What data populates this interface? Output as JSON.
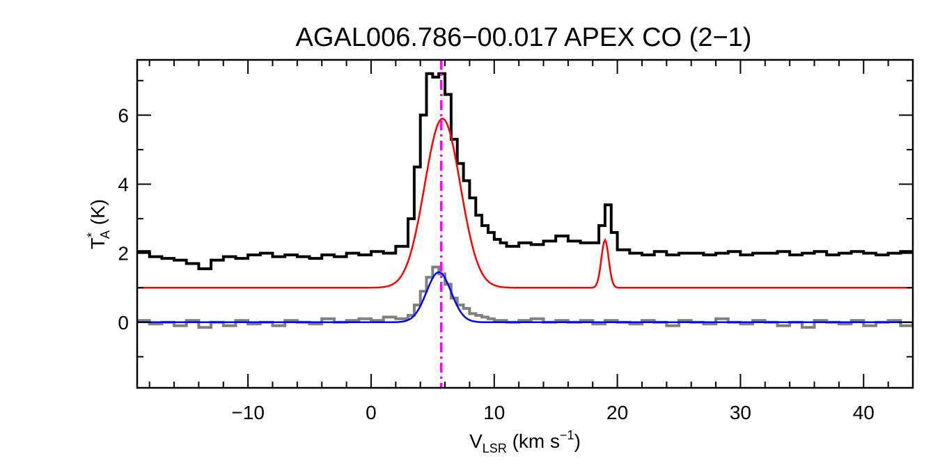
{
  "chart_data": {
    "type": "line",
    "title": "AGAL006.786−00.017  APEX CO (2−1)",
    "xlabel": {
      "main": "V",
      "sub": "LSR",
      "units_prefix": " (km s",
      "units_sup": "−1",
      "units_suffix": ")"
    },
    "ylabel": {
      "main": "T",
      "sup": "*",
      "sub": "A",
      "units": " (K)"
    },
    "xlim": [
      -19,
      44
    ],
    "ylim": [
      -1.9,
      7.6
    ],
    "xticks": [
      -10,
      0,
      10,
      20,
      30,
      40
    ],
    "xtick_labels": [
      "−10",
      "0",
      "10",
      "20",
      "30",
      "40"
    ],
    "yticks": [
      0,
      2,
      4,
      6
    ],
    "ytick_labels": [
      "0",
      "2",
      "4",
      "6"
    ],
    "x_minor_step": 2,
    "y_minor_step": 1,
    "grid": false,
    "vline": {
      "x": 5.7,
      "color": "#ff00ff",
      "style": "dash-dot"
    },
    "series": [
      {
        "role": "spectrum-offset",
        "style": "step",
        "color": "#000000",
        "offset": 1.0,
        "x": [
          -19,
          -18,
          -17,
          -16,
          -15,
          -14,
          -13,
          -12,
          -11,
          -10,
          -9,
          -8,
          -7,
          -6,
          -5,
          -4,
          -3,
          -2,
          -1,
          0,
          1,
          2,
          3,
          3.5,
          4,
          4.5,
          5,
          5.5,
          6,
          6.5,
          7,
          7.5,
          8,
          8.5,
          9,
          9.5,
          10,
          10.5,
          11,
          12,
          13,
          14,
          15,
          16,
          17,
          18,
          18.5,
          19,
          19.5,
          20,
          21,
          22,
          23,
          24,
          25,
          26,
          27,
          28,
          29,
          30,
          31,
          32,
          33,
          34,
          35,
          36,
          37,
          38,
          39,
          40,
          41,
          42,
          43,
          44
        ],
        "y": [
          1.05,
          0.9,
          0.85,
          0.8,
          0.7,
          0.55,
          0.8,
          0.9,
          0.85,
          0.95,
          1.0,
          0.9,
          0.95,
          0.9,
          0.85,
          0.95,
          0.9,
          1.0,
          0.95,
          1.05,
          1.0,
          1.2,
          2.0,
          3.5,
          5.0,
          6.2,
          6.1,
          6.2,
          5.6,
          4.3,
          3.6,
          3.1,
          2.6,
          2.1,
          1.8,
          1.6,
          1.4,
          1.3,
          1.2,
          1.3,
          1.25,
          1.35,
          1.5,
          1.35,
          1.3,
          1.3,
          1.8,
          2.4,
          1.6,
          1.1,
          1.0,
          0.95,
          1.05,
          0.95,
          1.0,
          1.0,
          0.95,
          1.0,
          1.05,
          0.95,
          1.0,
          1.0,
          1.05,
          0.95,
          1.0,
          1.05,
          0.95,
          1.0,
          1.05,
          1.0,
          0.95,
          1.0,
          1.05,
          1.0
        ]
      },
      {
        "role": "fit-offset",
        "style": "smooth",
        "color": "#ff0000",
        "offset": 1.0,
        "components": [
          {
            "amp": 4.9,
            "center": 5.8,
            "sigma": 1.45
          },
          {
            "amp": 1.38,
            "center": 19.0,
            "sigma": 0.3
          }
        ]
      },
      {
        "role": "spectrum",
        "style": "step",
        "color": "#808080",
        "offset": 0.0,
        "x": [
          -19,
          -18,
          -17,
          -16,
          -15,
          -14,
          -13,
          -12,
          -11,
          -10,
          -9,
          -8,
          -7,
          -6,
          -5,
          -4,
          -3,
          -2,
          -1,
          0,
          1,
          2,
          3,
          3.5,
          4,
          4.5,
          5,
          5.5,
          6,
          6.5,
          7,
          7.5,
          8,
          8.5,
          9,
          9.5,
          10,
          11,
          12,
          13,
          14,
          15,
          16,
          17,
          18,
          19,
          20,
          21,
          22,
          23,
          24,
          25,
          26,
          27,
          28,
          29,
          30,
          31,
          32,
          33,
          34,
          35,
          36,
          37,
          38,
          39,
          40,
          41,
          42,
          43,
          44
        ],
        "y": [
          0.05,
          -0.05,
          0.0,
          -0.1,
          0.05,
          -0.15,
          0.0,
          -0.1,
          0.05,
          -0.05,
          0.0,
          -0.1,
          0.05,
          0.0,
          -0.05,
          0.1,
          0.0,
          0.05,
          0.1,
          0.05,
          0.15,
          0.1,
          0.2,
          0.5,
          0.9,
          1.3,
          1.6,
          1.4,
          1.1,
          0.7,
          0.5,
          0.4,
          0.25,
          0.2,
          0.15,
          0.1,
          0.05,
          0.0,
          0.05,
          0.1,
          0.0,
          0.05,
          0.0,
          0.05,
          -0.05,
          0.05,
          0.0,
          -0.05,
          0.05,
          0.0,
          -0.1,
          0.05,
          0.0,
          -0.05,
          0.1,
          0.0,
          -0.05,
          0.05,
          0.0,
          -0.1,
          0.0,
          -0.15,
          0.05,
          0.0,
          -0.05,
          0.05,
          -0.1,
          0.0,
          0.05,
          -0.1,
          0.0
        ]
      },
      {
        "role": "fit",
        "style": "smooth",
        "color": "#0000ff",
        "offset": 0.0,
        "components": [
          {
            "amp": 1.45,
            "center": 5.5,
            "sigma": 1.0
          }
        ]
      }
    ]
  }
}
